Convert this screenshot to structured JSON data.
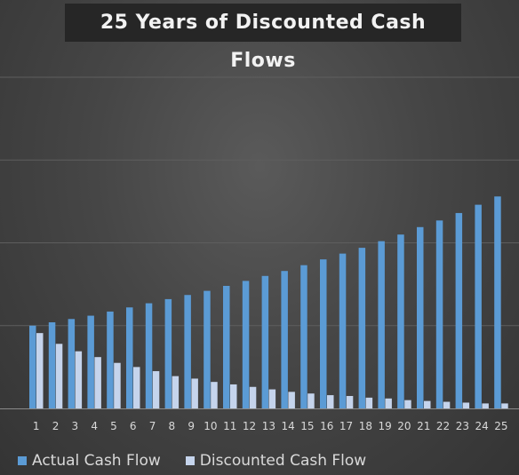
{
  "chart_data": {
    "type": "bar",
    "title": "25 Years of Discounted Cash Flows",
    "xlabel": "",
    "ylabel": "",
    "ylim": [
      0,
      4
    ],
    "grid": true,
    "legend_position": "bottom-left",
    "categories": [
      "1",
      "2",
      "3",
      "4",
      "5",
      "6",
      "7",
      "8",
      "9",
      "10",
      "11",
      "12",
      "13",
      "14",
      "15",
      "16",
      "17",
      "18",
      "19",
      "20",
      "21",
      "22",
      "23",
      "24",
      "25"
    ],
    "series": [
      {
        "name": "Actual Cash Flow",
        "color": "#5b9bd5",
        "values": [
          1.0,
          1.04,
          1.08,
          1.12,
          1.17,
          1.22,
          1.27,
          1.32,
          1.37,
          1.42,
          1.48,
          1.54,
          1.6,
          1.66,
          1.73,
          1.8,
          1.87,
          1.94,
          2.02,
          2.1,
          2.19,
          2.27,
          2.36,
          2.46,
          2.56
        ]
      },
      {
        "name": "Discounted Cash Flow",
        "color": "#c5d4ec",
        "values": [
          0.91,
          0.78,
          0.69,
          0.62,
          0.55,
          0.5,
          0.45,
          0.39,
          0.36,
          0.32,
          0.29,
          0.26,
          0.23,
          0.2,
          0.18,
          0.16,
          0.15,
          0.13,
          0.12,
          0.1,
          0.09,
          0.08,
          0.07,
          0.06,
          0.06
        ]
      }
    ]
  },
  "colors": {
    "background": "#464646",
    "title_background": "#262626",
    "gridline": "#5e5e5e",
    "axis_line": "#8a8a8a",
    "tick_text": "#d9d9d9"
  }
}
